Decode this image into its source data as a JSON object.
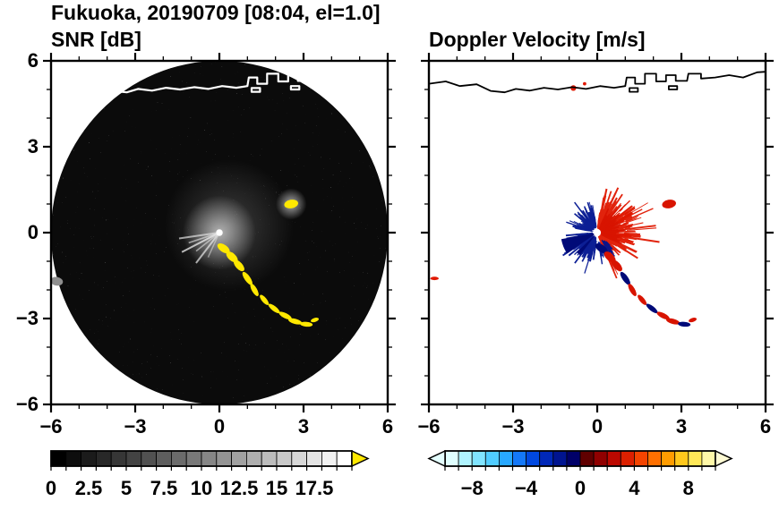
{
  "title": "Fukuoka, 20190709 [08:04, el=1.0]",
  "figure": {
    "station": "Fukuoka",
    "date": "20190709",
    "time": "08:04",
    "elevation": "1.0"
  },
  "coastline": {
    "lines": [
      [
        [
          -6,
          5.2
        ],
        [
          -5.4,
          5.28
        ],
        [
          -4.9,
          5.12
        ],
        [
          -4.3,
          5.18
        ],
        [
          -3.8,
          4.95
        ],
        [
          -3.3,
          4.9
        ],
        [
          -2.9,
          5.02
        ],
        [
          -2.4,
          4.96
        ],
        [
          -1.9,
          5.06
        ],
        [
          -1.4,
          5.0
        ],
        [
          -0.9,
          5.08
        ],
        [
          -0.4,
          5.02
        ],
        [
          0.1,
          5.12
        ],
        [
          0.6,
          5.06
        ],
        [
          1.0,
          5.12
        ],
        [
          1.05,
          5.42
        ],
        [
          1.35,
          5.42
        ],
        [
          1.35,
          5.2
        ],
        [
          1.7,
          5.2
        ],
        [
          1.7,
          5.55
        ],
        [
          2.1,
          5.55
        ],
        [
          2.1,
          5.28
        ],
        [
          2.45,
          5.28
        ],
        [
          2.45,
          5.5
        ],
        [
          2.8,
          5.5
        ],
        [
          2.8,
          5.3
        ],
        [
          3.2,
          5.3
        ],
        [
          3.25,
          5.55
        ],
        [
          3.7,
          5.55
        ],
        [
          3.7,
          5.38
        ],
        [
          4.2,
          5.42
        ],
        [
          4.7,
          5.5
        ],
        [
          5.2,
          5.42
        ],
        [
          5.7,
          5.6
        ],
        [
          6,
          5.62
        ]
      ],
      [
        [
          1.15,
          5.05
        ],
        [
          1.45,
          5.05
        ],
        [
          1.45,
          4.92
        ],
        [
          1.15,
          4.92
        ],
        [
          1.15,
          5.05
        ]
      ],
      [
        [
          2.55,
          5.12
        ],
        [
          2.85,
          5.12
        ],
        [
          2.85,
          5.0
        ],
        [
          2.55,
          5.0
        ],
        [
          2.55,
          5.12
        ]
      ]
    ]
  },
  "chart_data": [
    {
      "type": "heatmap",
      "title": "SNR [dB]",
      "xlim": [
        -6,
        6
      ],
      "ylim": [
        -6,
        6
      ],
      "grid": false,
      "show_y_labels": true,
      "coast_color": "#ffffff",
      "coast_width": 2.2,
      "x_ticks": [
        {
          "v": -6,
          "t": "−6"
        },
        {
          "v": -3,
          "t": "−3"
        },
        {
          "v": 0,
          "t": "0"
        },
        {
          "v": 3,
          "t": "3"
        },
        {
          "v": 6,
          "t": "6"
        }
      ],
      "y_ticks": [
        {
          "v": 6,
          "t": "6"
        },
        {
          "v": 3,
          "t": "3"
        },
        {
          "v": 0,
          "t": "0"
        },
        {
          "v": -3,
          "t": "−3"
        },
        {
          "v": -6,
          "t": "−6"
        }
      ],
      "description": "PPI radar scan disk of radius 6 km; near-black background of weak noise, bright clutter glow around the radar at center with whitish spokes toward SW, a chain of yellow high-SNR echoes arcing 1-4 km SE of the radar, one yellow echo ~2.7 km ENE, gray patch at western rim.",
      "colorbar": {
        "range": [
          0,
          20
        ],
        "labels": [
          {
            "v": 0,
            "t": "0"
          },
          {
            "v": 2.5,
            "t": "2.5"
          },
          {
            "v": 5,
            "t": "5"
          },
          {
            "v": 7.5,
            "t": "7.5"
          },
          {
            "v": 10,
            "t": "10"
          },
          {
            "v": 12.5,
            "t": "12.5"
          },
          {
            "v": 15,
            "t": "15"
          },
          {
            "v": 17.5,
            "t": "17.5"
          }
        ],
        "colors": [
          "#000000",
          "#0d0d0d",
          "#1b1b1b",
          "#282828",
          "#363636",
          "#434343",
          "#515151",
          "#5e5e5e",
          "#6b6b6b",
          "#797979",
          "#868686",
          "#949494",
          "#a1a1a1",
          "#afafaf",
          "#bcbcbc",
          "#c9c9c9",
          "#d7d7d7",
          "#e4e4e4",
          "#f2f2f2",
          "#ffffff"
        ],
        "over_color": "#ffe800",
        "under_color": null
      },
      "features": [
        {
          "kind": "disk",
          "r": 6,
          "color": "#0b0b0b"
        },
        {
          "kind": "noise",
          "opacity": 0.35
        },
        {
          "kind": "glow",
          "x": 0.35,
          "y": 0.25,
          "r": 2.3,
          "color": "#6e6e6e",
          "opacity": 0.5
        },
        {
          "kind": "glow",
          "x": 0,
          "y": 0,
          "r": 1.3,
          "color": "#c8c8c8",
          "opacity": 0.85
        },
        {
          "kind": "spoke",
          "angle": 188,
          "r1": 1.45,
          "width": 2,
          "color": "#e0e0e0",
          "opacity": 0.7
        },
        {
          "kind": "spoke",
          "angle": 198,
          "r1": 1.15,
          "width": 1.6,
          "color": "#e0e0e0",
          "opacity": 0.65
        },
        {
          "kind": "spoke",
          "angle": 207,
          "r1": 1.5,
          "width": 2,
          "color": "#f0f0f0",
          "opacity": 0.75
        },
        {
          "kind": "spoke",
          "angle": 218,
          "r1": 1.05,
          "width": 1.6,
          "color": "#e0e0e0",
          "opacity": 0.6
        },
        {
          "kind": "spoke",
          "angle": 232,
          "r1": 1.35,
          "width": 2,
          "color": "#eaeaea",
          "opacity": 0.7
        },
        {
          "kind": "spoke",
          "angle": 245,
          "r1": 0.95,
          "width": 1.5,
          "color": "#dcdcdc",
          "opacity": 0.55
        },
        {
          "kind": "dot",
          "x": 0,
          "y": 0,
          "r": 0.12,
          "color": "#ffffff"
        },
        {
          "kind": "blob",
          "x": 0.15,
          "y": -0.55,
          "w": 0.5,
          "h": 0.26,
          "rot": 35,
          "color": "#ffe800"
        },
        {
          "kind": "blob",
          "x": 0.45,
          "y": -0.85,
          "w": 0.5,
          "h": 0.26,
          "rot": 42,
          "color": "#ffe800"
        },
        {
          "kind": "blob",
          "x": 0.7,
          "y": -1.15,
          "w": 0.5,
          "h": 0.24,
          "rot": 48,
          "color": "#ffe800"
        },
        {
          "kind": "blob",
          "x": 1.0,
          "y": -1.6,
          "w": 0.55,
          "h": 0.2,
          "rot": 55,
          "color": "#ffe800"
        },
        {
          "kind": "blob",
          "x": 1.25,
          "y": -2.0,
          "w": 0.5,
          "h": 0.18,
          "rot": 60,
          "color": "#ffe800"
        },
        {
          "kind": "blob",
          "x": 1.6,
          "y": -2.35,
          "w": 0.45,
          "h": 0.17,
          "rot": 50,
          "color": "#ffe800"
        },
        {
          "kind": "blob",
          "x": 1.95,
          "y": -2.65,
          "w": 0.5,
          "h": 0.17,
          "rot": 38,
          "color": "#ffe800"
        },
        {
          "kind": "blob",
          "x": 2.35,
          "y": -2.9,
          "w": 0.5,
          "h": 0.18,
          "rot": 27,
          "color": "#ffe800"
        },
        {
          "kind": "blob",
          "x": 2.7,
          "y": -3.1,
          "w": 0.5,
          "h": 0.18,
          "rot": 15,
          "color": "#ffe800"
        },
        {
          "kind": "blob",
          "x": 3.1,
          "y": -3.2,
          "w": 0.45,
          "h": 0.17,
          "rot": 5,
          "color": "#ffe800"
        },
        {
          "kind": "blob",
          "x": 3.4,
          "y": -3.05,
          "w": 0.3,
          "h": 0.14,
          "rot": -18,
          "color": "#ffe800"
        },
        {
          "kind": "glow",
          "x": 2.56,
          "y": 1.0,
          "r": 0.55,
          "color": "#bdbdbd",
          "opacity": 0.9
        },
        {
          "kind": "blob",
          "x": 2.56,
          "y": 1.0,
          "w": 0.5,
          "h": 0.3,
          "rot": -10,
          "color": "#ffe800"
        },
        {
          "kind": "blob",
          "x": -5.8,
          "y": -1.7,
          "w": 0.45,
          "h": 0.3,
          "rot": 10,
          "color": "#8f8f8f"
        }
      ]
    },
    {
      "type": "heatmap",
      "title": "Doppler Velocity [m/s]",
      "xlim": [
        -6,
        6
      ],
      "ylim": [
        -6,
        6
      ],
      "grid": false,
      "show_y_labels": false,
      "coast_color": "#000000",
      "coast_width": 1.8,
      "x_ticks": [
        {
          "v": -6,
          "t": "−6"
        },
        {
          "v": -3,
          "t": "−3"
        },
        {
          "v": 0,
          "t": "0"
        },
        {
          "v": 3,
          "t": "3"
        },
        {
          "v": 6,
          "t": "6"
        }
      ],
      "y_ticks": [
        {
          "v": 6,
          "t": "6"
        },
        {
          "v": 3,
          "t": "3"
        },
        {
          "v": 0,
          "t": "0"
        },
        {
          "v": -3,
          "t": "−3"
        },
        {
          "v": -6,
          "t": "−6"
        }
      ],
      "description": "Doppler velocity on white background: positive (red/orange, receding) velocities in a fan E-NE of the radar, negative (navy, approaching) streaks and solid wedges toward W-SW; mixed red/navy echo chain arcing 1-4 km SE; isolated red echoes ~5 km N and ~2.7 km ENE; tiny red echo at western rim.",
      "colorbar": {
        "range": [
          -10,
          10
        ],
        "labels": [
          {
            "v": -8,
            "t": "−8"
          },
          {
            "v": -4,
            "t": "−4"
          },
          {
            "v": 0,
            "t": "0"
          },
          {
            "v": 4,
            "t": "4"
          },
          {
            "v": 8,
            "t": "8"
          }
        ],
        "colors": [
          "#e0ffff",
          "#b0f4ff",
          "#80e4ff",
          "#50ccff",
          "#28a8ff",
          "#1478f8",
          "#0048e0",
          "#0028b8",
          "#001490",
          "#000068",
          "#600000",
          "#900000",
          "#bc0800",
          "#dc2000",
          "#f44400",
          "#ff7000",
          "#ff9c00",
          "#ffc81c",
          "#ffe858",
          "#fff8a8"
        ],
        "over_color": "#fffbd4",
        "under_color": "#e4ffff"
      },
      "features": [
        {
          "kind": "fan",
          "a0": -68,
          "a1": 84,
          "r0": 0.12,
          "r1": 1.8,
          "count": 330,
          "color": "#e01800"
        },
        {
          "kind": "fan",
          "a0": -25,
          "a1": 65,
          "r0": 0.1,
          "r1": 1.0,
          "count": 170,
          "color": "#d81400"
        },
        {
          "kind": "fan",
          "a0": -15,
          "a1": 45,
          "r0": 0.8,
          "r1": 2.3,
          "count": 45,
          "color": "#e01800"
        },
        {
          "kind": "fan",
          "a0": 96,
          "a1": 170,
          "r0": 0.15,
          "r1": 1.3,
          "count": 95,
          "color": "#001490"
        },
        {
          "kind": "fan",
          "a0": 184,
          "a1": 262,
          "r0": 0.15,
          "r1": 1.5,
          "count": 130,
          "color": "#001490"
        },
        {
          "kind": "fan",
          "a0": -82,
          "a1": -45,
          "r0": 0.3,
          "r1": 1.15,
          "count": 30,
          "color": "#001490"
        },
        {
          "kind": "wedge",
          "a0": 190,
          "a1": 214,
          "r": 1.3,
          "color": "#000a78"
        },
        {
          "kind": "wedge",
          "a0": 223,
          "a1": 234,
          "r": 1.0,
          "color": "#000a78"
        },
        {
          "kind": "dot",
          "x": 0,
          "y": 0,
          "r": 0.13,
          "color": "#ffffff"
        },
        {
          "kind": "blob",
          "x": 0.15,
          "y": -0.55,
          "w": 0.5,
          "h": 0.26,
          "rot": 35,
          "color": "#000a78"
        },
        {
          "kind": "blob",
          "x": 0.45,
          "y": -0.85,
          "w": 0.5,
          "h": 0.26,
          "rot": 42,
          "color": "#d81400"
        },
        {
          "kind": "blob",
          "x": 0.7,
          "y": -1.15,
          "w": 0.5,
          "h": 0.24,
          "rot": 48,
          "color": "#d81400"
        },
        {
          "kind": "blob",
          "x": 1.0,
          "y": -1.6,
          "w": 0.55,
          "h": 0.2,
          "rot": 55,
          "color": "#000a78"
        },
        {
          "kind": "blob",
          "x": 1.25,
          "y": -2.0,
          "w": 0.5,
          "h": 0.18,
          "rot": 60,
          "color": "#d81400"
        },
        {
          "kind": "blob",
          "x": 1.6,
          "y": -2.35,
          "w": 0.45,
          "h": 0.17,
          "rot": 50,
          "color": "#d81400"
        },
        {
          "kind": "blob",
          "x": 1.95,
          "y": -2.65,
          "w": 0.5,
          "h": 0.17,
          "rot": 38,
          "color": "#000a78"
        },
        {
          "kind": "blob",
          "x": 2.35,
          "y": -2.9,
          "w": 0.5,
          "h": 0.18,
          "rot": 27,
          "color": "#d81400"
        },
        {
          "kind": "blob",
          "x": 2.7,
          "y": -3.1,
          "w": 0.5,
          "h": 0.18,
          "rot": 15,
          "color": "#d81400"
        },
        {
          "kind": "blob",
          "x": 3.1,
          "y": -3.2,
          "w": 0.45,
          "h": 0.17,
          "rot": 5,
          "color": "#000a78"
        },
        {
          "kind": "blob",
          "x": 3.4,
          "y": -3.05,
          "w": 0.3,
          "h": 0.14,
          "rot": -18,
          "color": "#d81400"
        },
        {
          "kind": "blob",
          "x": 2.56,
          "y": 1.0,
          "w": 0.5,
          "h": 0.3,
          "rot": -10,
          "color": "#d81400"
        },
        {
          "kind": "dot",
          "x": -0.85,
          "y": 5.05,
          "r": 0.1,
          "color": "#e01800"
        },
        {
          "kind": "dot",
          "x": -0.45,
          "y": 5.2,
          "r": 0.06,
          "color": "#e01800"
        },
        {
          "kind": "blob",
          "x": -5.8,
          "y": -1.6,
          "w": 0.3,
          "h": 0.12,
          "rot": 0,
          "color": "#e01800"
        }
      ]
    }
  ]
}
